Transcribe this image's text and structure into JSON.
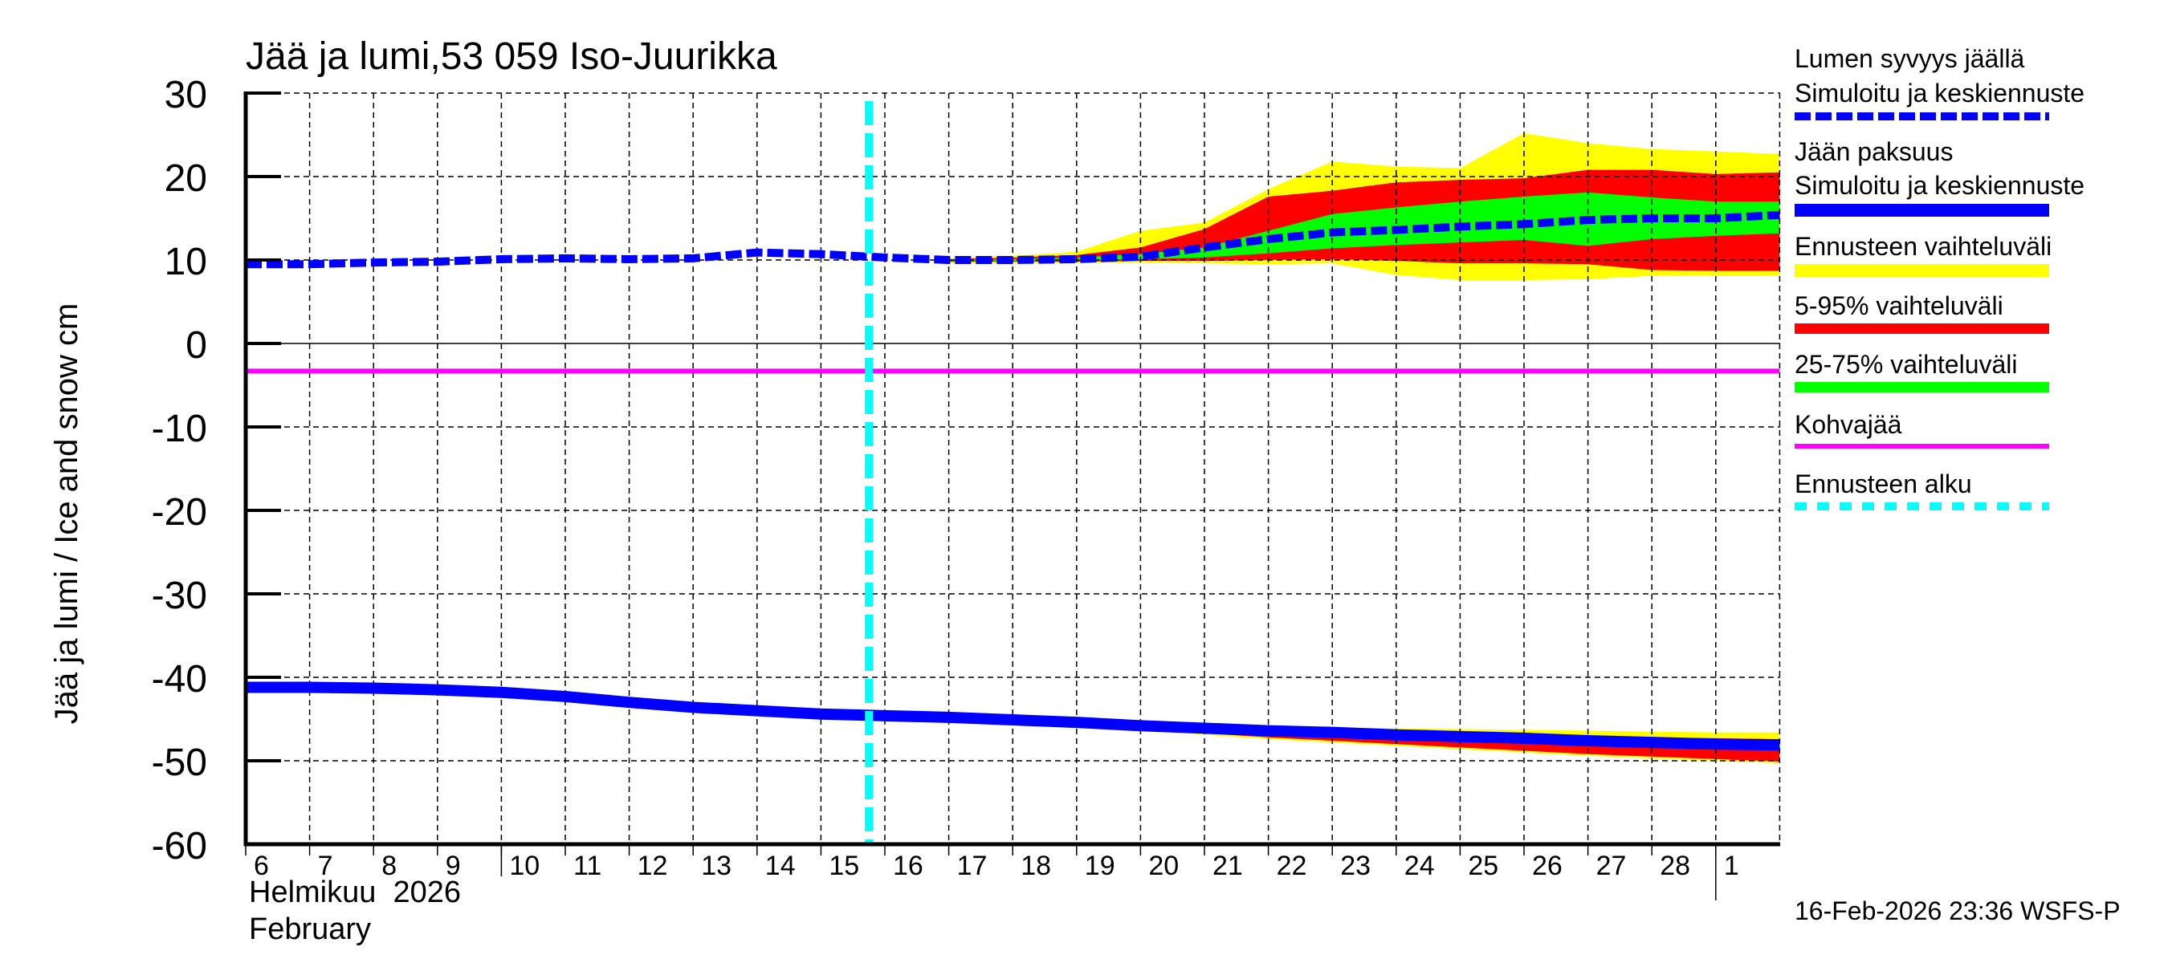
{
  "title": "Jää ja lumi,53 059 Iso-Juurikka",
  "y_axis_label": "Jää ja lumi / Ice and snow    cm",
  "x_axis": {
    "month_fi": "Helmikuu  2026",
    "month_en": "February",
    "day_ticks": [
      "6",
      "7",
      "8",
      "9",
      "10",
      "11",
      "12",
      "13",
      "14",
      "15",
      "16",
      "17",
      "18",
      "19",
      "20",
      "21",
      "22",
      "23",
      "24",
      "25",
      "26",
      "27",
      "28",
      "1"
    ]
  },
  "y_ticks": [
    "30",
    "20",
    "10",
    "0",
    "-10",
    "-20",
    "-30",
    "-40",
    "-50",
    "-60"
  ],
  "timestamp": "16-Feb-2026 23:36 WSFS-P",
  "legend": {
    "snow_title": "Lumen syvyys jäällä",
    "snow_sub": "Simuloitu ja keskiennuste",
    "ice_title": "Jään paksuus",
    "ice_sub": "Simuloitu ja keskiennuste",
    "range_all": "Ennusteen vaihteluväli",
    "range_5_95": "5-95% vaihteluväli",
    "range_25_75": "25-75% vaihteluväli",
    "slush": "Kohvajää",
    "forecast_start": "Ennusteen alku"
  },
  "colors": {
    "snow_line": "#0000ff",
    "ice_line": "#0000ff",
    "range_all": "#ffff00",
    "range_5_95": "#ff0000",
    "range_25_75": "#00ff00",
    "slush": "#ff00ff",
    "forecast_start": "#00ffff"
  },
  "chart_data": {
    "type": "area",
    "title": "Jää ja lumi,53 059 Iso-Juurikka",
    "xlabel": "Helmikuu 2026 / February",
    "ylabel": "Jää ja lumi / Ice and snow cm",
    "ylim": [
      -60,
      30
    ],
    "grid": true,
    "legend_position": "right",
    "forecast_start_day": 15.75,
    "x": [
      6,
      7,
      8,
      9,
      10,
      11,
      12,
      13,
      14,
      15,
      16,
      17,
      18,
      19,
      20,
      21,
      22,
      23,
      24,
      25,
      26,
      27,
      28,
      29,
      30
    ],
    "series": [
      {
        "name": "Lumen syvyys jäällä – Simuloitu ja keskiennuste",
        "style": "dashed",
        "values": [
          9.5,
          9.5,
          9.7,
          9.8,
          10.1,
          10.2,
          10.1,
          10.2,
          10.9,
          10.7,
          10.3,
          10.0,
          10.0,
          10.1,
          10.4,
          11.5,
          12.5,
          13.3,
          13.6,
          14.0,
          14.3,
          14.8,
          15.0,
          15.0,
          15.4
        ]
      },
      {
        "name": "Jään paksuus – Simuloitu ja keskiennuste",
        "style": "solid",
        "values": [
          -41.2,
          -41.2,
          -41.3,
          -41.5,
          -41.8,
          -42.3,
          -43.0,
          -43.6,
          -44.0,
          -44.4,
          -44.6,
          -44.8,
          -45.1,
          -45.4,
          -45.8,
          -46.1,
          -46.4,
          -46.6,
          -46.9,
          -47.1,
          -47.3,
          -47.6,
          -47.8,
          -48.0,
          -48.1
        ]
      },
      {
        "name": "Kohvajää",
        "style": "solid",
        "values": [
          -3.3,
          -3.3,
          -3.3,
          -3.3,
          -3.3,
          -3.3,
          -3.3,
          -3.3,
          -3.3,
          -3.3,
          -3.3,
          -3.3,
          -3.3,
          -3.3,
          -3.3,
          -3.3,
          -3.3,
          -3.3,
          -3.3,
          -3.3,
          -3.3,
          -3.3,
          -3.3,
          -3.3,
          -3.3
        ]
      }
    ],
    "bands_snow": {
      "x": [
        17,
        18,
        19,
        20,
        21,
        22,
        23,
        24,
        25,
        26,
        27,
        28,
        29,
        30
      ],
      "range_all_upper": [
        10.2,
        10.5,
        11.0,
        13.5,
        14.5,
        18.5,
        21.8,
        21.2,
        21.0,
        25.2,
        24.0,
        23.3,
        23.0,
        22.7
      ],
      "range_5_95_upper": [
        10.1,
        10.3,
        10.6,
        11.5,
        13.7,
        17.6,
        18.3,
        19.3,
        19.6,
        19.8,
        20.8,
        20.8,
        20.3,
        20.5
      ],
      "range_25_75_upper": [
        10.0,
        10.1,
        10.3,
        10.7,
        11.5,
        13.5,
        15.5,
        16.3,
        17.0,
        17.6,
        18.1,
        17.5,
        17.0,
        17.0
      ],
      "range_25_75_lower": [
        9.9,
        9.9,
        10.0,
        10.1,
        10.3,
        10.8,
        11.4,
        11.8,
        12.1,
        12.4,
        11.7,
        12.5,
        12.9,
        13.2
      ],
      "range_5_95_lower": [
        9.8,
        9.8,
        9.8,
        9.9,
        9.9,
        10.0,
        10.1,
        9.9,
        9.6,
        9.6,
        9.5,
        8.8,
        8.7,
        8.7
      ],
      "range_all_lower": [
        9.6,
        9.6,
        9.7,
        9.7,
        9.6,
        9.5,
        9.6,
        8.2,
        7.6,
        7.6,
        7.7,
        8.1,
        8.1,
        8.1
      ]
    },
    "bands_ice": {
      "x": [
        20,
        21,
        22,
        23,
        24,
        25,
        26,
        27,
        28,
        29,
        30
      ],
      "range_all_upper": [
        -45.6,
        -45.8,
        -45.9,
        -46.0,
        -46.1,
        -46.2,
        -46.3,
        -46.4,
        -46.5,
        -46.6,
        -46.6
      ],
      "range_5_95_upper": [
        -45.7,
        -45.9,
        -46.0,
        -46.2,
        -46.4,
        -46.6,
        -46.8,
        -47.0,
        -47.2,
        -47.3,
        -47.4
      ],
      "range_25_75_upper": [
        -45.8,
        -46.0,
        -46.2,
        -46.5,
        -46.7,
        -47.0,
        -47.2,
        -47.4,
        -47.6,
        -47.7,
        -47.8
      ],
      "range_25_75_lower": [
        -45.9,
        -46.2,
        -46.6,
        -46.9,
        -47.2,
        -47.5,
        -47.8,
        -48.0,
        -48.3,
        -48.5,
        -48.7
      ],
      "range_5_95_lower": [
        -46.0,
        -46.7,
        -47.2,
        -47.6,
        -48.0,
        -48.4,
        -48.8,
        -49.2,
        -49.5,
        -49.8,
        -50.1
      ],
      "range_all_lower": [
        -46.1,
        -46.9,
        -47.4,
        -47.8,
        -48.2,
        -48.6,
        -49.0,
        -49.4,
        -49.7,
        -50.0,
        -50.3
      ]
    }
  }
}
